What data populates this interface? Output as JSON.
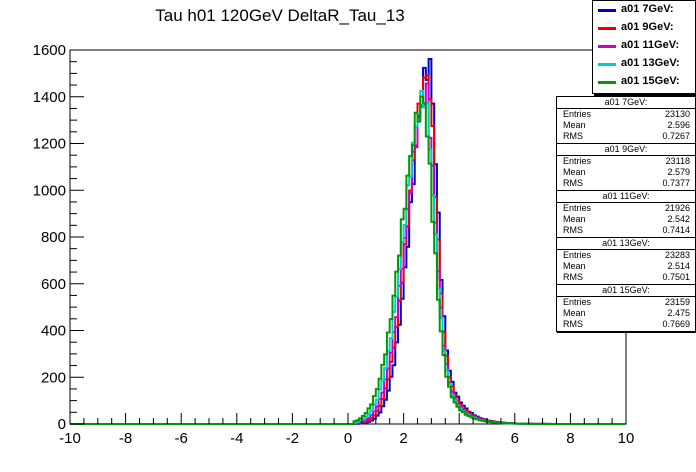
{
  "chart_data": {
    "type": "line",
    "title": "Tau h01 120GeV DeltaR_Tau_13",
    "xlabel": "",
    "ylabel": "",
    "xlim": [
      -10,
      10
    ],
    "ylim": [
      0,
      1600
    ],
    "x_ticks": [
      "-10",
      "-8",
      "-6",
      "-4",
      "-2",
      "0",
      "2",
      "4",
      "6",
      "8",
      "10"
    ],
    "y_ticks": [
      "0",
      "200",
      "400",
      "600",
      "800",
      "1000",
      "1200",
      "1400",
      "1600"
    ],
    "bin_width": 0.1,
    "grid": false,
    "legend_position": "top-right",
    "series": [
      {
        "name": "a01 7GeV:",
        "color": "#0000cc",
        "entries": "23130",
        "mean": "2.596",
        "rms": "0.7267",
        "peak": 1535
      },
      {
        "name": "a01 9GeV:",
        "color": "#ee0000",
        "entries": "23118",
        "mean": "2.579",
        "rms": "0.7377",
        "peak": 1490
      },
      {
        "name": "a01 11GeV:",
        "color": "#cc00cc",
        "entries": "21926",
        "mean": "2.542",
        "rms": "0.7414",
        "peak": 1410
      },
      {
        "name": "a01 13GeV:",
        "color": "#00cccc",
        "entries": "23283",
        "mean": "2.514",
        "rms": "0.7501",
        "peak": 1405
      },
      {
        "name": "a01 15GeV:",
        "color": "#009900",
        "entries": "23159",
        "mean": "2.475",
        "rms": "0.7669",
        "peak": 1380
      }
    ],
    "stats_labels": {
      "entries": "Entries",
      "mean": "Mean",
      "rms": "RMS"
    }
  }
}
